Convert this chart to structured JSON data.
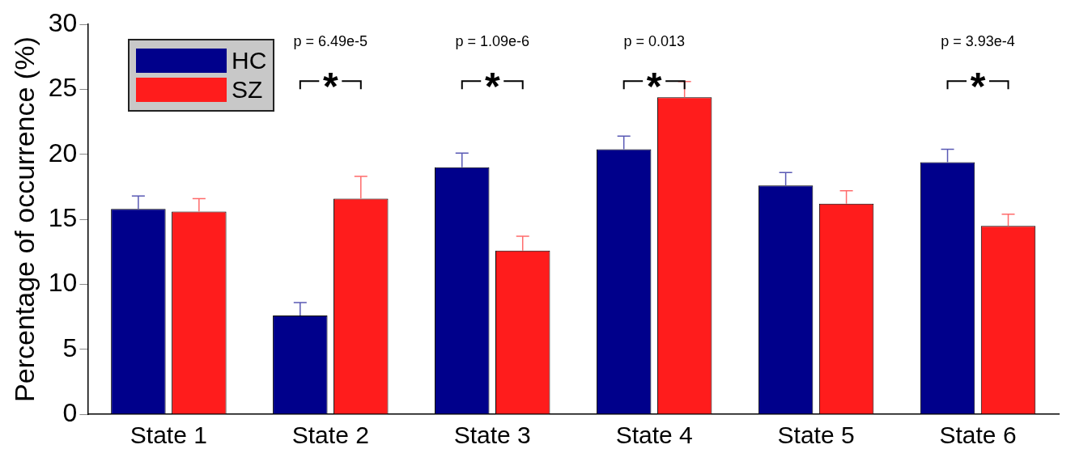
{
  "chart_data": {
    "type": "bar",
    "ylabel": "Percentage of occurrence (%)",
    "categories": [
      "State 1",
      "State 2",
      "State 3",
      "State 4",
      "State 5",
      "State 6"
    ],
    "series": [
      {
        "name": "HC",
        "color": "#00008b",
        "values": [
          15.8,
          7.6,
          19.0,
          20.4,
          17.6,
          19.4
        ],
        "errors": [
          [
            15.8,
            16.8
          ],
          [
            7.6,
            8.6
          ],
          [
            19.0,
            20.1
          ],
          [
            20.4,
            21.4
          ],
          [
            17.6,
            18.6
          ],
          [
            19.4,
            20.4
          ]
        ]
      },
      {
        "name": "SZ",
        "color": "#ff1c1c",
        "values": [
          15.6,
          16.6,
          12.6,
          24.4,
          16.2,
          14.5
        ],
        "errors": [
          [
            15.6,
            16.6
          ],
          [
            16.6,
            18.3
          ],
          [
            12.6,
            13.7
          ],
          [
            24.4,
            25.6
          ],
          [
            16.2,
            17.2
          ],
          [
            14.5,
            15.4
          ]
        ]
      }
    ],
    "ylim": [
      0,
      30
    ],
    "yticks": [
      0,
      5,
      10,
      15,
      20,
      25,
      30
    ],
    "grid": false,
    "legend": "top left",
    "annotations": [
      "p = 6.49e-5",
      "*",
      "p = 1.09e-6",
      "*",
      "p = 0.013",
      "*",
      "p = 3.93e-4",
      "*"
    ]
  }
}
